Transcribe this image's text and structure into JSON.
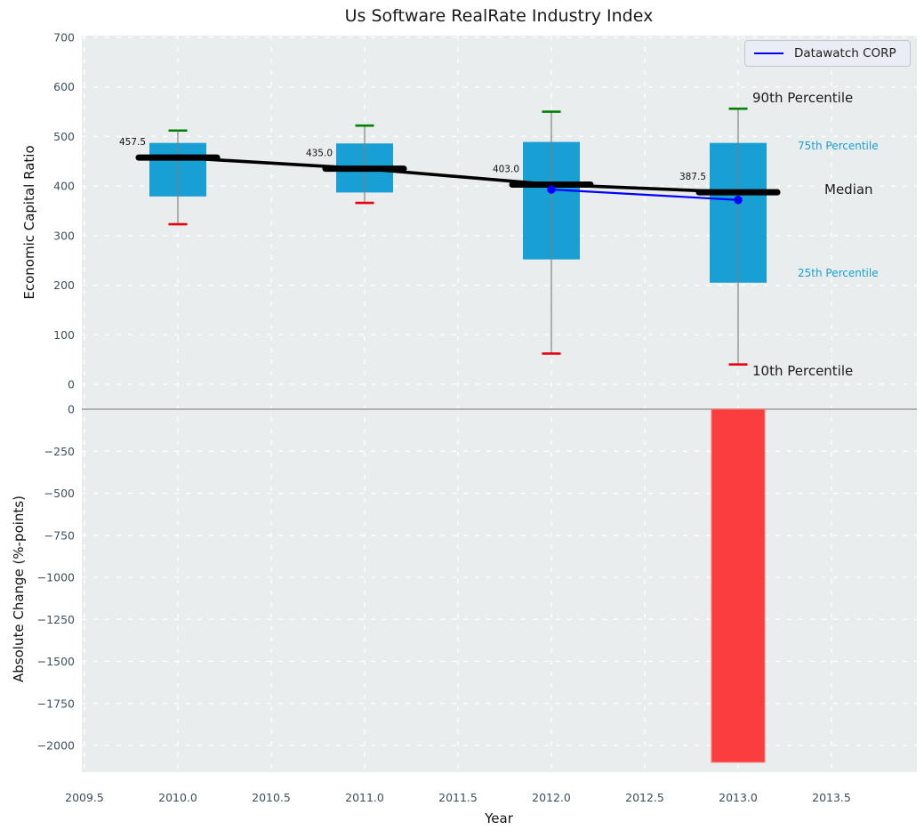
{
  "title": "Us Software RealRate Industry Index",
  "x_axis": {
    "label": "Year",
    "ticks": [
      "2009.5",
      "2010.0",
      "2010.5",
      "2011.0",
      "2011.5",
      "2012.0",
      "2012.5",
      "2013.0",
      "2013.5"
    ],
    "tick_values": [
      2009.5,
      2010.0,
      2010.5,
      2011.0,
      2011.5,
      2012.0,
      2012.5,
      2013.0,
      2013.5
    ]
  },
  "colors": {
    "box_fill": "#189fd4",
    "bar_negative": "#fa3e3e",
    "bar_edge": "#fc7a7a",
    "median_line": "#000000",
    "whisker_line": "#808080",
    "whisker_cap_high": "#008000",
    "whisker_cap_low": "#e8000b",
    "company_line": "#0000ff",
    "panel_background": "#e9edee",
    "grid": "#ffffff",
    "tick_label": "#3d4e5d",
    "percentile_label_blue": "#189fd4",
    "zero_line": "#b0b0b0"
  },
  "chart_data": [
    {
      "type": "box",
      "title": "Us Software RealRate Industry Index",
      "ylabel": "Economic Capital Ratio",
      "ylim": [
        -25,
        703
      ],
      "yticks": [
        0,
        100,
        200,
        300,
        400,
        500,
        600,
        700
      ],
      "grid": true,
      "legend_position": "upper right",
      "categories": [
        2010,
        2011,
        2012,
        2013
      ],
      "boxes": [
        {
          "year": 2010,
          "p10": 323,
          "p25": 379,
          "median": 457.5,
          "p75": 487,
          "p90": 512,
          "label": "457.5"
        },
        {
          "year": 2011,
          "p10": 366,
          "p25": 387,
          "median": 435.0,
          "p75": 486,
          "p90": 522,
          "label": "435.0"
        },
        {
          "year": 2012,
          "p10": 62,
          "p25": 252,
          "median": 403.0,
          "p75": 489,
          "p90": 550,
          "label": "403.0"
        },
        {
          "year": 2013,
          "p10": 40,
          "p25": 205,
          "median": 387.5,
          "p75": 487,
          "p90": 556,
          "label": "387.5"
        }
      ],
      "median_trend": {
        "x": [
          2010,
          2011,
          2012,
          2013
        ],
        "y": [
          457.5,
          435.0,
          403.0,
          387.5
        ]
      },
      "series": [
        {
          "name": "Datawatch CORP",
          "x": [
            2012,
            2013
          ],
          "y": [
            393,
            372
          ],
          "color": "#0000ff",
          "marker": "circle"
        }
      ],
      "right_labels": [
        {
          "text": "90th Percentile",
          "value": 575,
          "color": "#1a1a1a",
          "size": 15
        },
        {
          "text": "75th Percentile",
          "value": 479,
          "color": "#189fd4",
          "size": 12
        },
        {
          "text": "Median",
          "value": 391,
          "color": "#1a1a1a",
          "size": 15
        },
        {
          "text": "25th Percentile",
          "value": 221,
          "color": "#189fd4",
          "size": 12
        },
        {
          "text": "10th Percentile",
          "value": 24,
          "color": "#1a1a1a",
          "size": 15
        }
      ]
    },
    {
      "type": "bar",
      "ylabel": "Absolute Change (%-points)",
      "xlabel": "Year",
      "ylim": [
        74,
        -2160
      ],
      "yticks": [
        0,
        -250,
        -500,
        -750,
        -1000,
        -1250,
        -1500,
        -1750,
        -2000
      ],
      "grid": true,
      "zero_line": true,
      "bars": [
        {
          "year": 2013,
          "value": -2100
        }
      ]
    }
  ]
}
